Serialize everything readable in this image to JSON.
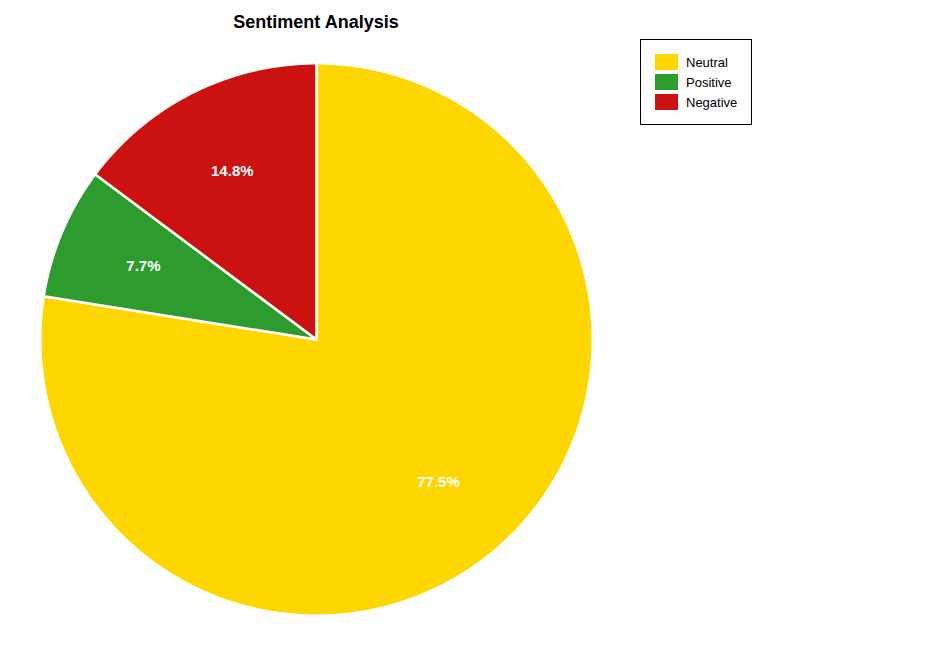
{
  "chart_data": {
    "type": "pie",
    "title": "Sentiment Analysis",
    "categories": [
      "Neutral",
      "Positive",
      "Negative"
    ],
    "values": [
      77.5,
      7.7,
      14.8
    ],
    "value_labels": [
      "77.5%",
      "7.7%",
      "14.8%"
    ],
    "colors": [
      "#FFD700",
      "#2E9B2E",
      "#CC1111"
    ],
    "data_labels": true,
    "legend": "upper right"
  }
}
